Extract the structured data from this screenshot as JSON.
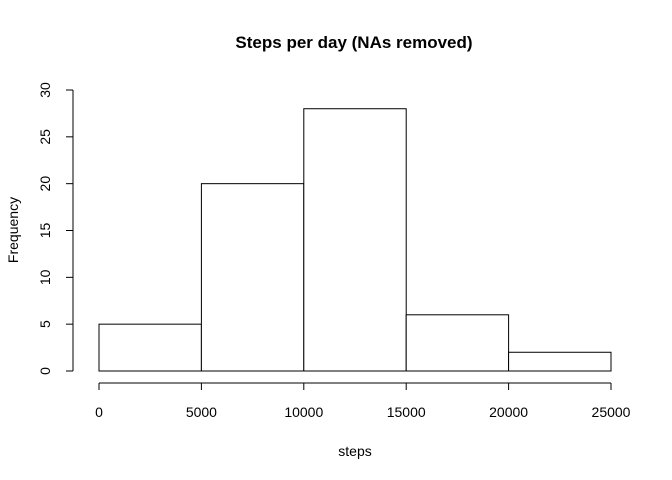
{
  "chart_data": {
    "type": "bar",
    "title": "Steps per day (NAs removed)",
    "xlabel": "steps",
    "ylabel": "Frequency",
    "bins": [
      {
        "from": 0,
        "to": 5000,
        "count": 5
      },
      {
        "from": 5000,
        "to": 10000,
        "count": 20
      },
      {
        "from": 10000,
        "to": 15000,
        "count": 28
      },
      {
        "from": 15000,
        "to": 20000,
        "count": 6
      },
      {
        "from": 20000,
        "to": 25000,
        "count": 2
      }
    ],
    "xticks": [
      0,
      5000,
      10000,
      15000,
      20000,
      25000
    ],
    "yticks": [
      0,
      5,
      10,
      15,
      20,
      25,
      30
    ],
    "xlim": [
      0,
      25000
    ],
    "ylim": [
      0,
      30
    ],
    "grid": false,
    "colors": {
      "bar_fill": "#ffffff",
      "bar_stroke": "#000000",
      "axis": "#000000"
    }
  }
}
